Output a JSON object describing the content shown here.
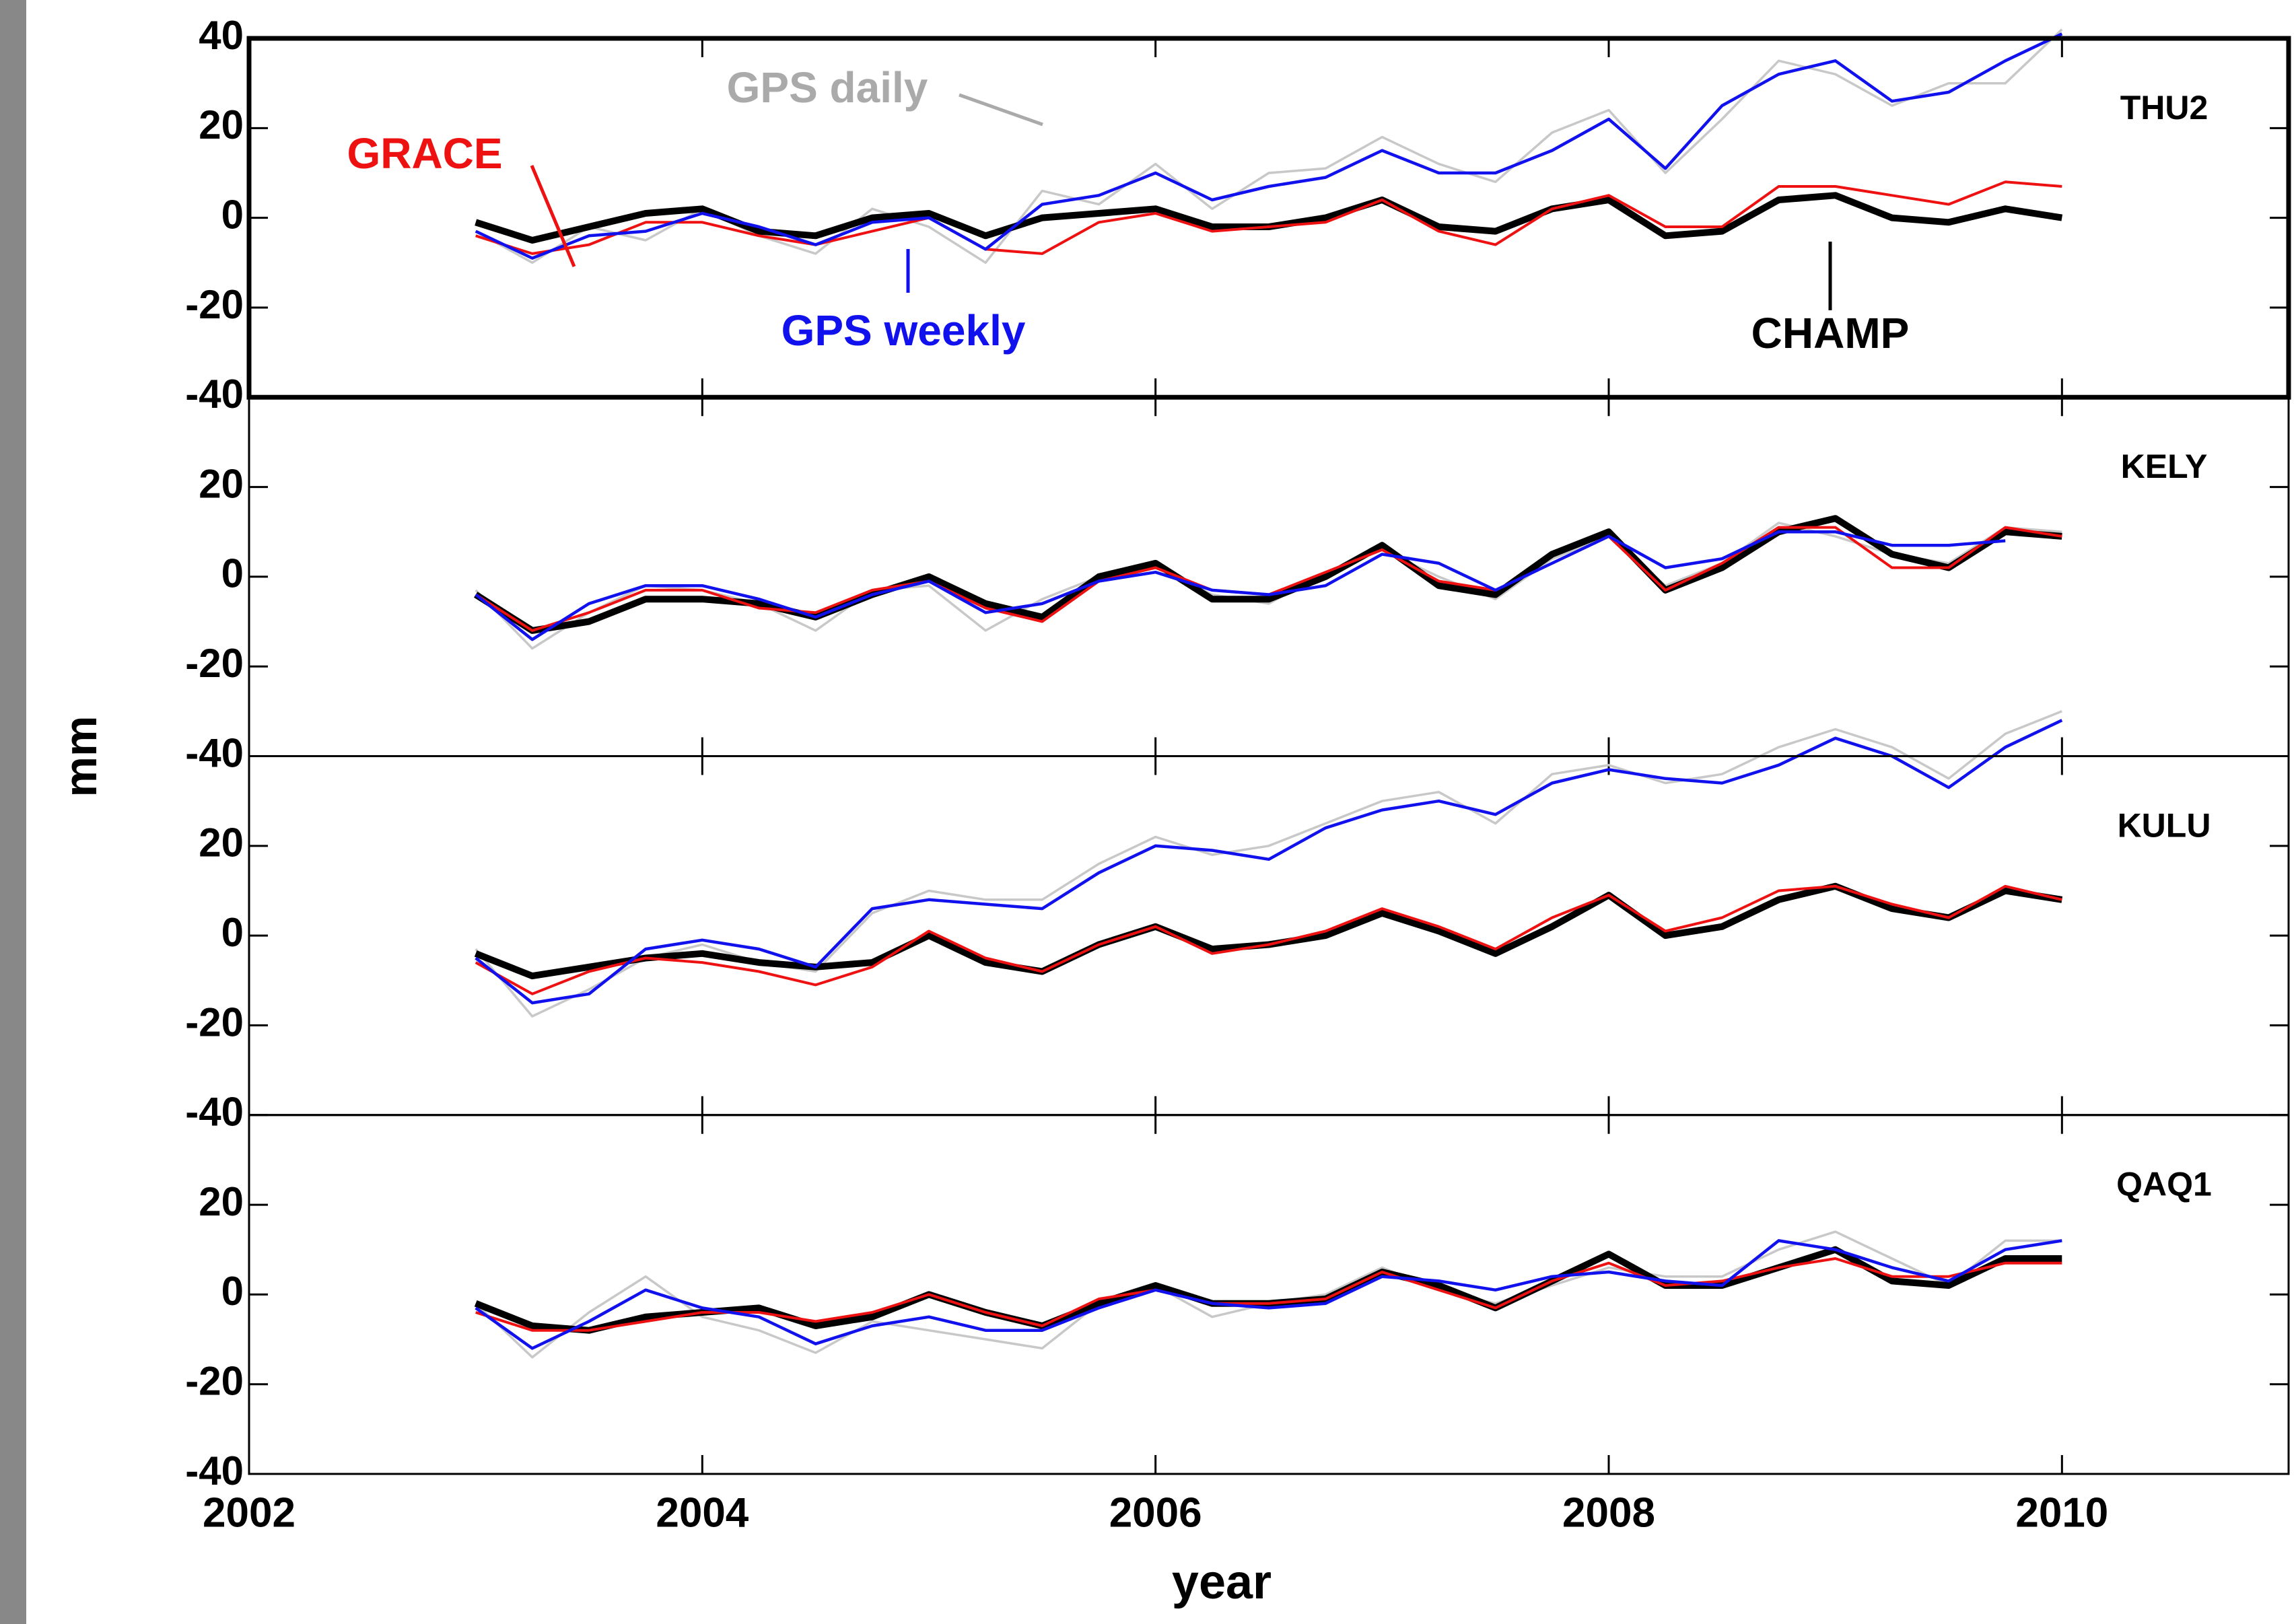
{
  "ylabel": "mm",
  "chart_data": [
    {
      "type": "line",
      "station": "THU2",
      "ylim": [
        -40,
        40
      ],
      "yticks": [
        -40,
        -20,
        0,
        20,
        40
      ],
      "xlim": [
        2002,
        2011
      ],
      "annotations": [
        "GPS daily",
        "GRACE",
        "GPS weekly",
        "CHAMP"
      ],
      "x": [
        2003.0,
        2003.25,
        2003.5,
        2003.75,
        2004.0,
        2004.25,
        2004.5,
        2004.75,
        2005.0,
        2005.25,
        2005.5,
        2005.75,
        2006.0,
        2006.25,
        2006.5,
        2006.75,
        2007.0,
        2007.25,
        2007.5,
        2007.75,
        2008.0,
        2008.25,
        2008.5,
        2008.75,
        2009.0,
        2009.25,
        2009.5,
        2009.75,
        2010.0
      ],
      "series": [
        {
          "name": "GPS daily",
          "color": "#c8c8c8",
          "values": [
            -3,
            -10,
            -2,
            -5,
            2,
            -4,
            -8,
            2,
            -2,
            -10,
            6,
            3,
            12,
            2,
            10,
            11,
            18,
            12,
            8,
            19,
            24,
            10,
            22,
            35,
            32,
            25,
            30,
            30,
            42
          ]
        },
        {
          "name": "CHAMP",
          "color": "#000000",
          "values": [
            -1,
            -5,
            -2,
            1,
            2,
            -3,
            -4,
            0,
            1,
            -4,
            0,
            1,
            2,
            -2,
            -2,
            0,
            4,
            -2,
            -3,
            2,
            4,
            -4,
            -3,
            4,
            5,
            0,
            -1,
            2,
            0
          ]
        },
        {
          "name": "GRACE",
          "color": "#ee1111",
          "values": [
            -4,
            -8,
            -6,
            -1,
            -1,
            -4,
            -6,
            -3,
            0,
            -7,
            -8,
            -1,
            1,
            -3,
            -2,
            -1,
            4,
            -3,
            -6,
            2,
            5,
            -2,
            -2,
            7,
            7,
            5,
            3,
            8,
            7
          ]
        },
        {
          "name": "GPS weekly",
          "color": "#1111ee",
          "values": [
            -3,
            -9,
            -4,
            -3,
            1,
            -2,
            -6,
            -1,
            0,
            -7,
            3,
            5,
            10,
            4,
            7,
            9,
            15,
            10,
            10,
            15,
            22,
            11,
            25,
            32,
            35,
            26,
            28,
            35,
            41
          ]
        }
      ]
    },
    {
      "type": "line",
      "station": "KELY",
      "ylim": [
        -40,
        40
      ],
      "yticks": [
        -40,
        -20,
        0,
        20
      ],
      "xlim": [
        2002,
        2011
      ],
      "x": [
        2003.0,
        2003.25,
        2003.5,
        2003.75,
        2004.0,
        2004.25,
        2004.5,
        2004.75,
        2005.0,
        2005.25,
        2005.5,
        2005.75,
        2006.0,
        2006.25,
        2006.5,
        2006.75,
        2007.0,
        2007.25,
        2007.5,
        2007.75,
        2008.0,
        2008.25,
        2008.5,
        2008.75,
        2009.0,
        2009.25,
        2009.5,
        2009.75,
        2010.0
      ],
      "series": [
        {
          "name": "GPS daily",
          "color": "#c8c8c8",
          "values": [
            -3,
            -16,
            -8,
            -2,
            -3,
            -6,
            -12,
            -3,
            -2,
            -12,
            -5,
            0,
            2,
            -4,
            -6,
            1,
            6,
            0,
            -5,
            4,
            9,
            -2,
            3,
            12,
            9,
            5,
            3,
            11,
            10
          ]
        },
        {
          "name": "CHAMP",
          "color": "#000000",
          "values": [
            -4,
            -12,
            -10,
            -5,
            -5,
            -6,
            -9,
            -4,
            0,
            -6,
            -9,
            0,
            3,
            -5,
            -5,
            0,
            7,
            -2,
            -4,
            5,
            10,
            -3,
            2,
            10,
            13,
            5,
            2,
            10,
            9
          ]
        },
        {
          "name": "GRACE",
          "color": "#ee1111",
          "values": [
            -4,
            -12,
            -8,
            -3,
            -3,
            -7,
            -8,
            -3,
            -1,
            -7,
            -10,
            -1,
            2,
            -3,
            -4,
            1,
            6,
            -1,
            -3,
            3,
            9,
            -3,
            3,
            11,
            11,
            2,
            2,
            11,
            9
          ]
        },
        {
          "name": "GPS weekly",
          "color": "#1111ee",
          "values": [
            -4,
            -14,
            -6,
            -2,
            -2,
            -5,
            -9,
            -4,
            -1,
            -8,
            -6,
            -1,
            1,
            -3,
            -4,
            -2,
            5,
            3,
            -3,
            3,
            9,
            2,
            4,
            10,
            10,
            7,
            7,
            8,
            null
          ]
        }
      ]
    },
    {
      "type": "line",
      "station": "KULU",
      "ylim": [
        -40,
        40
      ],
      "yticks": [
        -40,
        -20,
        0,
        20
      ],
      "xlim": [
        2002,
        2011
      ],
      "x": [
        2003.0,
        2003.25,
        2003.5,
        2003.75,
        2004.0,
        2004.25,
        2004.5,
        2004.75,
        2005.0,
        2005.25,
        2005.5,
        2005.75,
        2006.0,
        2006.25,
        2006.5,
        2006.75,
        2007.0,
        2007.25,
        2007.5,
        2007.75,
        2008.0,
        2008.25,
        2008.5,
        2008.75,
        2009.0,
        2009.25,
        2009.5,
        2009.75,
        2010.0
      ],
      "series": [
        {
          "name": "GPS daily",
          "color": "#c8c8c8",
          "values": [
            -3,
            -18,
            -12,
            -5,
            -2,
            -6,
            -8,
            5,
            10,
            8,
            8,
            16,
            22,
            18,
            20,
            25,
            30,
            32,
            25,
            36,
            38,
            34,
            36,
            42,
            46,
            42,
            35,
            45,
            50
          ]
        },
        {
          "name": "CHAMP",
          "color": "#000000",
          "values": [
            -4,
            -9,
            -7,
            -5,
            -4,
            -6,
            -7,
            -6,
            0,
            -6,
            -8,
            -2,
            2,
            -3,
            -2,
            0,
            5,
            1,
            -4,
            2,
            9,
            0,
            2,
            8,
            11,
            6,
            4,
            10,
            8
          ]
        },
        {
          "name": "GRACE",
          "color": "#ee1111",
          "values": [
            -6,
            -13,
            -8,
            -5,
            -6,
            -8,
            -11,
            -7,
            1,
            -5,
            -8,
            -2,
            2,
            -4,
            -2,
            1,
            6,
            2,
            -3,
            4,
            9,
            1,
            4,
            10,
            11,
            7,
            4,
            11,
            8
          ]
        },
        {
          "name": "GPS weekly",
          "color": "#1111ee",
          "values": [
            -5,
            -15,
            -13,
            -3,
            -1,
            -3,
            -7,
            6,
            8,
            7,
            6,
            14,
            20,
            19,
            17,
            24,
            28,
            30,
            27,
            34,
            37,
            35,
            34,
            38,
            44,
            40,
            33,
            42,
            48
          ]
        }
      ]
    },
    {
      "type": "line",
      "station": "QAQ1",
      "ylim": [
        -40,
        40
      ],
      "yticks": [
        -40,
        -20,
        0,
        20
      ],
      "xlim": [
        2002,
        2011
      ],
      "xticks": [
        2002,
        2004,
        2006,
        2008,
        2010
      ],
      "xlabel": "year",
      "x": [
        2003.0,
        2003.25,
        2003.5,
        2003.75,
        2004.0,
        2004.25,
        2004.5,
        2004.75,
        2005.0,
        2005.25,
        2005.5,
        2005.75,
        2006.0,
        2006.25,
        2006.5,
        2006.75,
        2007.0,
        2007.25,
        2007.5,
        2007.75,
        2008.0,
        2008.25,
        2008.5,
        2008.75,
        2009.0,
        2009.25,
        2009.5,
        2009.75,
        2010.0
      ],
      "series": [
        {
          "name": "GPS daily",
          "color": "#c8c8c8",
          "values": [
            -2,
            -14,
            -4,
            4,
            -5,
            -8,
            -13,
            -6,
            -8,
            -10,
            -12,
            -2,
            2,
            -5,
            -2,
            0,
            6,
            1,
            -2,
            2,
            6,
            4,
            4,
            10,
            14,
            8,
            2,
            12,
            12
          ]
        },
        {
          "name": "CHAMP",
          "color": "#000000",
          "values": [
            -2,
            -7,
            -8,
            -5,
            -4,
            -3,
            -7,
            -5,
            0,
            -4,
            -7,
            -2,
            2,
            -2,
            -2,
            -1,
            5,
            2,
            -3,
            3,
            9,
            2,
            2,
            6,
            10,
            3,
            2,
            8,
            8
          ]
        },
        {
          "name": "GRACE",
          "color": "#ee1111",
          "values": [
            -4,
            -8,
            -8,
            -6,
            -4,
            -4,
            -6,
            -4,
            0,
            -4,
            -7,
            -1,
            1,
            -2,
            -2,
            -1,
            5,
            1,
            -3,
            3,
            7,
            2,
            3,
            6,
            8,
            4,
            4,
            7,
            7
          ]
        },
        {
          "name": "GPS weekly",
          "color": "#1111ee",
          "values": [
            -3,
            -12,
            -6,
            1,
            -3,
            -5,
            -11,
            -7,
            -5,
            -8,
            -8,
            -3,
            1,
            -2,
            -3,
            -2,
            4,
            3,
            1,
            4,
            5,
            3,
            2,
            12,
            10,
            6,
            3,
            10,
            12
          ]
        }
      ]
    }
  ]
}
